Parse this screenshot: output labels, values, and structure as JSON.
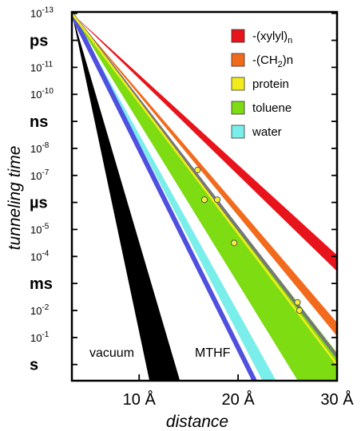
{
  "chart_data": {
    "type": "line",
    "title": "",
    "xlabel": "distance",
    "ylabel": "tunneling time",
    "x_range": [
      3.2,
      30
    ],
    "y_range_log10_seconds": [
      -13,
      0.6
    ],
    "grid": false,
    "legend_placement": "top-right",
    "x_ticks": [
      {
        "value": 10,
        "label": "10 Å"
      },
      {
        "value": 20,
        "label": "20 Å"
      },
      {
        "value": 30,
        "label": "30 Å"
      }
    ],
    "y_ticks": [
      {
        "log10": -13,
        "base": "10",
        "exp": "-13",
        "label": "",
        "bold": false
      },
      {
        "log10": -12,
        "base": "",
        "exp": "",
        "label": "ps",
        "bold": true
      },
      {
        "log10": -11,
        "base": "10",
        "exp": "-11",
        "label": "",
        "bold": false
      },
      {
        "log10": -10,
        "base": "10",
        "exp": "-10",
        "label": "",
        "bold": false
      },
      {
        "log10": -9,
        "base": "",
        "exp": "",
        "label": "ns",
        "bold": true
      },
      {
        "log10": -8,
        "base": "10",
        "exp": "-8",
        "label": "",
        "bold": false
      },
      {
        "log10": -7,
        "base": "10",
        "exp": "-7",
        "label": "",
        "bold": false
      },
      {
        "log10": -6,
        "base": "",
        "exp": "",
        "label": "µs",
        "bold": true
      },
      {
        "log10": -5,
        "base": "10",
        "exp": "-5",
        "label": "",
        "bold": false
      },
      {
        "log10": -4,
        "base": "10",
        "exp": "-4",
        "label": "",
        "bold": false
      },
      {
        "log10": -3,
        "base": "",
        "exp": "",
        "label": "ms",
        "bold": true
      },
      {
        "log10": -2,
        "base": "10",
        "exp": "-2",
        "label": "",
        "bold": false
      },
      {
        "log10": -1,
        "base": "10",
        "exp": "-1",
        "label": "",
        "bold": false
      },
      {
        "log10": 0,
        "base": "",
        "exp": "",
        "label": "s",
        "bold": true
      }
    ],
    "series": [
      {
        "name": "-(xylyl)n",
        "key": "xylyl",
        "kind": "line",
        "color": "#e8141c",
        "x": [
          3.2,
          30
        ],
        "y_log10": [
          -13,
          -3.55
        ]
      },
      {
        "name": "-(CH2)n",
        "key": "ch2",
        "kind": "line",
        "color": "#f26a1c",
        "x": [
          3.2,
          30
        ],
        "y_log10": [
          -13,
          -1.2
        ]
      },
      {
        "name": "protein",
        "key": "protein",
        "kind": "line",
        "color": "#f2ec1c",
        "x": [
          3.2,
          30
        ],
        "y_log10": [
          -13,
          0.0
        ]
      },
      {
        "name": "toluene",
        "key": "toluene",
        "kind": "band",
        "color": "#7ddc12",
        "x": [
          3.2,
          30
        ],
        "y_log10_lower": [
          -13,
          -0.1
        ],
        "y_log10_upper": [
          -13,
          0.6
        ]
      },
      {
        "name": "water",
        "key": "water",
        "kind": "band",
        "color": "#7aeeea",
        "x": [
          3.2,
          24
        ],
        "y_log10_lower": [
          -13,
          0.6
        ],
        "y_log10_upper": [
          -13,
          0.6
        ]
      },
      {
        "name": "vacuum",
        "key": "vacuum",
        "kind": "band",
        "color": "#000000",
        "x": [
          3.2,
          14.2
        ],
        "y_log10_lower": [
          -13,
          0.6
        ],
        "y_log10_upper": [
          -13,
          0.6
        ]
      }
    ],
    "extra_lines": [
      {
        "key": "mthf",
        "color": "#5050e0",
        "x": [
          3.2,
          23.5
        ],
        "y_log10": [
          -13,
          0.6
        ]
      },
      {
        "key": "gray-fit",
        "color": "#777777",
        "x": [
          3.2,
          30
        ],
        "y_log10": [
          -13,
          -0.3
        ]
      }
    ],
    "data_points": [
      {
        "x": 15.9,
        "y_log10": -7.2
      },
      {
        "x": 16.6,
        "y_log10": -6.1
      },
      {
        "x": 17.9,
        "y_log10": -6.1
      },
      {
        "x": 19.6,
        "y_log10": -4.5
      },
      {
        "x": 26.0,
        "y_log10": -2.3
      },
      {
        "x": 26.2,
        "y_log10": -2.0
      }
    ],
    "annotations": [
      {
        "key": "vacuum",
        "text": "vacuum"
      },
      {
        "key": "mthf",
        "text": "MTHF"
      }
    ],
    "legend": [
      {
        "key": "xylyl",
        "color": "#e8141c",
        "main": "-(xylyl)",
        "sub": "n",
        "tail": ""
      },
      {
        "key": "ch2",
        "color": "#f26a1c",
        "main": "-(CH",
        "sub": "2",
        "tail": ")n"
      },
      {
        "key": "protein",
        "color": "#f2ec1c",
        "main": "protein",
        "sub": "",
        "tail": ""
      },
      {
        "key": "toluene",
        "color": "#7ddc12",
        "main": "toluene",
        "sub": "",
        "tail": ""
      },
      {
        "key": "water",
        "color": "#7aeeea",
        "main": "water",
        "sub": "",
        "tail": ""
      }
    ]
  }
}
